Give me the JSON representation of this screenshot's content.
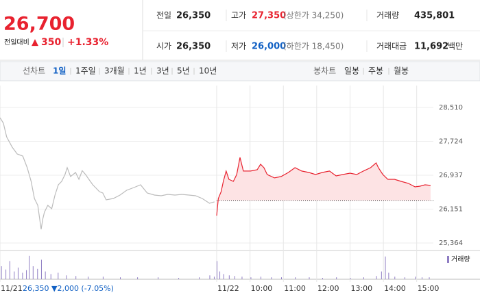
{
  "header": {
    "price": "26,700",
    "change_label": "전일대비",
    "change_arrow": "▲",
    "change": "350",
    "change_pct": "+1.33%",
    "stats": [
      {
        "label": "전일",
        "value": "26,350"
      },
      {
        "label": "고가",
        "value": "27,350",
        "note": "(상한가 34,250)"
      },
      {
        "label": "거래량",
        "value": "435,801"
      },
      {
        "label": "시가",
        "value": "26,350"
      },
      {
        "label": "저가",
        "value": "26,000",
        "note": "(하한가 18,450)"
      },
      {
        "label": "거래대금",
        "value": "11,692",
        "unit": "백만"
      }
    ]
  },
  "tabs": {
    "line_chart": "선차트",
    "periods": [
      "1일",
      "1주일",
      "3개월",
      "1년",
      "3년",
      "5년",
      "10년"
    ],
    "selected": 0,
    "candle_chart": "봉차트",
    "candles": [
      "일봉",
      "주봉",
      "월봉"
    ]
  },
  "chart_data": {
    "type": "line",
    "xlim": [
      0,
      780
    ],
    "xticks": [
      {
        "value": 0,
        "label": "11/21"
      },
      {
        "value": 390,
        "label": "11/22"
      },
      {
        "value": 450,
        "label": "10:00"
      },
      {
        "value": 510,
        "label": "11:00"
      },
      {
        "value": 570,
        "label": "12:00"
      },
      {
        "value": 630,
        "label": "13:00"
      },
      {
        "value": 690,
        "label": "14:00"
      },
      {
        "value": 750,
        "label": "15:00"
      }
    ],
    "ylim": [
      25205,
      29018
    ],
    "yticks": [
      {
        "value": 28510,
        "label": "28,510"
      },
      {
        "value": 27724,
        "label": "27,724"
      },
      {
        "value": 26937,
        "label": "26,937"
      },
      {
        "value": 26151,
        "label": "26,151"
      },
      {
        "value": 25364,
        "label": "25,364"
      }
    ],
    "baseline": 26350,
    "prev_day_summary": "26,350 ▼2,000 (-7.05%)",
    "series": [
      {
        "color": "#bbbbbb",
        "x": [
          0,
          6,
          12,
          22,
          31,
          41,
          49,
          56,
          62,
          68,
          74,
          77,
          80,
          86,
          93,
          99,
          105,
          111,
          117,
          121,
          127,
          136,
          142,
          148,
          154,
          160,
          167,
          173,
          179,
          185,
          191,
          204,
          216,
          228,
          241,
          253,
          265,
          278,
          290,
          302,
          315,
          327,
          340,
          352,
          364,
          377,
          386
        ],
        "values": [
          28272,
          28145,
          27827,
          27588,
          27430,
          27382,
          27112,
          26794,
          26397,
          26238,
          25682,
          25920,
          26079,
          26238,
          26159,
          26476,
          26715,
          26794,
          26953,
          27112,
          26906,
          27001,
          26842,
          27041,
          26953,
          26842,
          26715,
          26635,
          26556,
          26524,
          26365,
          26397,
          26476,
          26588,
          26651,
          26715,
          26524,
          26476,
          26460,
          26492,
          26476,
          26492,
          26476,
          26460,
          26397,
          26286,
          26318
        ]
      },
      {
        "color": "#e8222f",
        "fill": "#fde3e4",
        "x": [
          390,
          393,
          398,
          402,
          407,
          412,
          420,
          426,
          432,
          438,
          451,
          463,
          469,
          475,
          481,
          494,
          506,
          519,
          531,
          543,
          556,
          568,
          580,
          593,
          605,
          617,
          630,
          642,
          654,
          667,
          677,
          681,
          689,
          698,
          710,
          722,
          735,
          747,
          756,
          765,
          775
        ],
        "values": [
          26000,
          26397,
          26556,
          26794,
          27033,
          26842,
          26794,
          26953,
          27350,
          27033,
          27033,
          27064,
          27191,
          27112,
          26953,
          26874,
          26906,
          27001,
          27112,
          27033,
          27001,
          26953,
          27001,
          27033,
          26921,
          26953,
          26985,
          26953,
          27033,
          27112,
          27223,
          27112,
          26953,
          26842,
          26842,
          26794,
          26747,
          26667,
          26683,
          26715,
          26700
        ]
      }
    ],
    "volume": {
      "name": "거래량",
      "color": "#8e7cc3",
      "ylim": [
        0,
        40
      ],
      "x": [
        2,
        10,
        17,
        25,
        32,
        40,
        47,
        52,
        59,
        67,
        74,
        81,
        91,
        104,
        119,
        136,
        158,
        185,
        216,
        247,
        284,
        321,
        358,
        377,
        385,
        390,
        395,
        402,
        412,
        422,
        435,
        451,
        469,
        488,
        506,
        531,
        556,
        580,
        605,
        630,
        654,
        677,
        686,
        693,
        699,
        710,
        728,
        747,
        759,
        772
      ],
      "values": [
        20,
        15,
        28,
        12,
        18,
        10,
        14,
        36,
        20,
        16,
        30,
        12,
        8,
        10,
        6,
        5,
        4,
        4,
        3,
        3,
        3,
        2,
        3,
        6,
        4,
        28,
        12,
        8,
        6,
        5,
        4,
        3,
        4,
        3,
        3,
        3,
        3,
        2,
        3,
        2,
        3,
        5,
        12,
        35,
        10,
        4,
        3,
        4,
        3,
        3
      ]
    }
  }
}
